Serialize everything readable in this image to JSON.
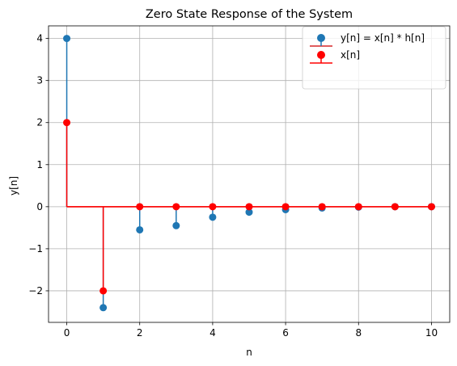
{
  "chart_data": {
    "type": "stem",
    "title": "Zero State Response of the System",
    "xlabel": "n",
    "ylabel": "y[n]",
    "xlim": [
      -0.5,
      10.5
    ],
    "ylim": [
      -2.75,
      4.3
    ],
    "xticks": [
      0,
      2,
      4,
      6,
      8,
      10
    ],
    "yticks": [
      -2,
      -1,
      0,
      1,
      2,
      3,
      4
    ],
    "ytick_labels": [
      "−2",
      "−1",
      "0",
      "1",
      "2",
      "3",
      "4"
    ],
    "grid": true,
    "legend_position": "top-right",
    "series": [
      {
        "name": "y[n] = x[n] * h[n]",
        "color": "#1f77b4",
        "baseline_color": "#d62728",
        "x": [
          0,
          1,
          2,
          3,
          4,
          5,
          6,
          7,
          8,
          9,
          10
        ],
        "values": [
          4,
          -2.4,
          -0.55,
          -0.45,
          -0.25,
          -0.13,
          -0.07,
          -0.03,
          -0.01,
          0,
          0
        ]
      },
      {
        "name": "x[n]",
        "color": "#ff0000",
        "baseline_color": "#ff0000",
        "x": [
          0,
          1,
          2,
          3,
          4,
          5,
          6,
          7,
          8,
          9,
          10
        ],
        "values": [
          2,
          -2,
          0,
          0,
          0,
          0,
          0,
          0,
          0,
          0,
          0
        ]
      }
    ]
  }
}
